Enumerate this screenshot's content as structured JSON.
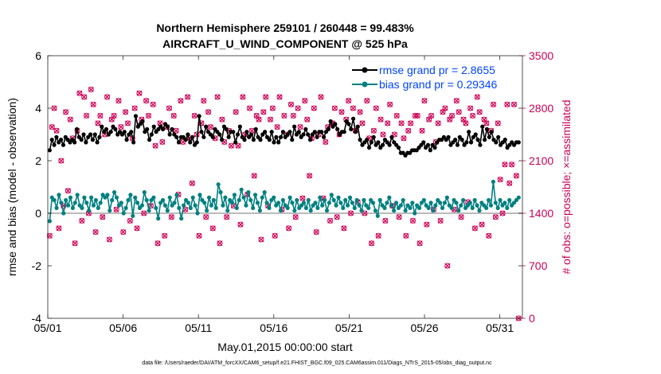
{
  "chart_data": {
    "type": "line",
    "title_line1": "Northern Hemisphere 259101 / 260448 = 99.483%",
    "title_line2": "AIRCRAFT_U_WIND_COMPONENT @ 525 hPa",
    "xlabel": "May.01,2015 00:00:00 start",
    "ylabel_left": "rmse and bias (model - observation)",
    "ylabel_right": "# of obs: o=possible; ×=assimilated",
    "ylim_left": [
      -4,
      6
    ],
    "ylim_right": [
      0,
      3500
    ],
    "xlim": [
      0,
      31.5
    ],
    "yticks_left": [
      "-4",
      "-2",
      "0",
      "2",
      "4",
      "6"
    ],
    "yticks_right": [
      "0",
      "700",
      "1400",
      "2100",
      "2800",
      "3500"
    ],
    "xticks": [
      {
        "value": 0,
        "label": "05/01"
      },
      {
        "value": 5,
        "label": "05/06"
      },
      {
        "value": 10,
        "label": "05/11"
      },
      {
        "value": 15,
        "label": "05/16"
      },
      {
        "value": 20,
        "label": "05/21"
      },
      {
        "value": 25,
        "label": "05/26"
      },
      {
        "value": 30,
        "label": "05/31"
      }
    ],
    "legend": [
      {
        "name": "rmse grand pr = 2.8655",
        "color": "#000000"
      },
      {
        "name": "bias grand pr = 0.29346",
        "color": "#008080"
      }
    ],
    "colors": {
      "rmse": "#000000",
      "bias": "#008080",
      "obs": "#cc0055",
      "zero_line": "#bbbbbb"
    },
    "series": [
      {
        "name": "rmse",
        "values": [
          2.4,
          2.8,
          2.6,
          2.9,
          2.7,
          2.8,
          2.6,
          2.9,
          2.8,
          2.7,
          2.8,
          2.7,
          3.2,
          2.9,
          2.8,
          3.0,
          2.7,
          2.9,
          3.0,
          2.8,
          3.0,
          2.7,
          2.9,
          3.3,
          3.1,
          3.2,
          3.0,
          3.1,
          3.3,
          3.2,
          3.0,
          3.1,
          3.0,
          3.1,
          2.8,
          3.0,
          3.1,
          2.7,
          3.7,
          3.3,
          3.4,
          3.5,
          3.1,
          3.2,
          2.8,
          3.0,
          3.3,
          3.1,
          3.2,
          3.3,
          3.2,
          3.4,
          3.3,
          3.0,
          3.2,
          3.0,
          2.9,
          2.7,
          2.9,
          2.9,
          2.8,
          3.0,
          2.7,
          2.9,
          2.6,
          2.7,
          3.7,
          3.1,
          2.9,
          3.3,
          3.1,
          3.0,
          2.9,
          3.2,
          3.1,
          3.0,
          2.8,
          3.3,
          3.2,
          2.9,
          3.1,
          3.1,
          2.7,
          3.0,
          3.3,
          2.9,
          2.8,
          3.1,
          2.9,
          3.0,
          2.8,
          3.2,
          2.9,
          2.8,
          3.0,
          3.1,
          2.9,
          2.8,
          3.1,
          2.7,
          2.9,
          2.7,
          2.9,
          3.1,
          2.9,
          3.0,
          3.1,
          2.8,
          3.3,
          3.0,
          3.1,
          2.9,
          3.0,
          3.2,
          3.0,
          2.8,
          3.0,
          3.1,
          2.9,
          3.1,
          3.1,
          2.9,
          3.1,
          3.2,
          3.5,
          3.3,
          3.4,
          3.2,
          3.0,
          3.1,
          3.1,
          3.5,
          3.4,
          3.2,
          3.6,
          3.1,
          3.3,
          2.8,
          2.6,
          2.7,
          2.8,
          2.5,
          2.7,
          2.9,
          2.6,
          2.7,
          2.5,
          2.6,
          2.8,
          2.7,
          2.6,
          2.9,
          2.7,
          2.6,
          2.5,
          2.3,
          2.3,
          2.2,
          2.3,
          2.3,
          2.4,
          2.4,
          2.4,
          2.5,
          2.6,
          2.7,
          2.5,
          2.6,
          2.4,
          2.6,
          2.5,
          2.7,
          2.8,
          2.8,
          2.9,
          2.8,
          2.9,
          2.6,
          2.7,
          2.8,
          2.6,
          2.9,
          2.8,
          2.6,
          2.7,
          3.1,
          2.7,
          2.9,
          3.0,
          2.8,
          2.6,
          3.3,
          2.8,
          3.2,
          2.9,
          3.1,
          2.8,
          2.7,
          2.9,
          2.6,
          2.7,
          2.8,
          2.5,
          2.6,
          2.7,
          2.6,
          2.7,
          2.7
        ]
      },
      {
        "name": "bias",
        "values": [
          -0.3,
          0.6,
          0.5,
          0.2,
          0.7,
          0.4,
          0.0,
          0.5,
          0.3,
          0.6,
          0.2,
          0.4,
          0.7,
          0.3,
          0.2,
          0.6,
          0.4,
          0.1,
          0.6,
          0.3,
          0.5,
          0.2,
          0.4,
          0.7,
          0.6,
          0.7,
          0.1,
          0.5,
          0.8,
          0.6,
          0.3,
          0.4,
          0.0,
          0.2,
          0.5,
          0.7,
          -0.1,
          0.6,
          0.4,
          0.2,
          0.3,
          0.8,
          0.5,
          0.1,
          0.5,
          0.6,
          0.2,
          -0.2,
          0.4,
          0.5,
          0.3,
          0.1,
          0.6,
          0.3,
          0.4,
          0.7,
          0.2,
          -0.2,
          0.3,
          0.5,
          0.4,
          0.2,
          0.6,
          0.3,
          0.0,
          0.7,
          0.5,
          0.4,
          0.1,
          0.6,
          0.3,
          0.5,
          0.2,
          1.1,
          0.8,
          0.3,
          0.6,
          0.1,
          0.5,
          0.4,
          0.7,
          0.2,
          0.5,
          0.9,
          0.6,
          0.3,
          0.8,
          0.5,
          0.2,
          0.7,
          0.4,
          0.1,
          0.6,
          0.8,
          0.4,
          0.2,
          0.5,
          0.6,
          0.3,
          0.4,
          0.1,
          0.5,
          0.3,
          0.2,
          0.6,
          0.4,
          0.1,
          0.5,
          0.2,
          0.3,
          0.4,
          0.2,
          0.5,
          0.1,
          0.3,
          0.4,
          0.2,
          0.6,
          0.3,
          0.5,
          0.1,
          0.4,
          0.7,
          0.5,
          0.3,
          0.6,
          0.4,
          0.2,
          0.5,
          0.3,
          0.6,
          0.4,
          0.2,
          0.5,
          0.3,
          0.1,
          0.5,
          0.3,
          0.2,
          0.5,
          0.4,
          0.1,
          -0.1,
          0.5,
          0.3,
          0.2,
          0.4,
          0.6,
          0.3,
          0.1,
          0.4,
          0.2,
          0.3,
          0.5,
          0.1,
          0.3,
          0.2,
          0.4,
          0.0,
          0.3,
          0.2,
          0.4,
          0.5,
          0.3,
          0.2,
          0.4,
          0.1,
          0.3,
          0.5,
          0.4,
          0.2,
          0.4,
          0.6,
          0.3,
          0.2,
          0.5,
          0.4,
          0.1,
          0.3,
          0.5,
          0.2,
          0.3,
          0.4,
          0.2,
          0.5,
          0.3,
          0.1,
          0.4,
          0.3,
          0.2,
          0.5,
          0.3,
          1.2,
          0.4,
          0.2,
          0.5,
          0.3,
          0.4,
          0.2,
          0.5,
          0.3,
          0.4,
          0.5,
          0.6
        ]
      }
    ],
    "obs_counts": {
      "values": [
        1100,
        2550,
        2800,
        2500,
        1200,
        2100,
        1500,
        2750,
        1700,
        2650,
        2400,
        1000,
        2500,
        3000,
        1300,
        2950,
        2700,
        1400,
        3050,
        2850,
        1150,
        2600,
        2700,
        1350,
        2450,
        2950,
        1050,
        2650,
        2700,
        1450,
        2900,
        2550,
        1150,
        2750,
        2600,
        1300,
        2400,
        2800,
        1200,
        3000,
        2650,
        1400,
        2900,
        2700,
        1500,
        2850,
        2300,
        1000,
        2600,
        2350,
        1100,
        2550,
        2800,
        1350,
        2700,
        2500,
        1650,
        2900,
        2350,
        1450,
        2950,
        2400,
        1800,
        2700,
        2450,
        1100,
        2600,
        2900,
        1350,
        2750,
        2550,
        1200,
        2400,
        2950,
        1000,
        2650,
        2350,
        1350,
        2500,
        2300,
        1500,
        2750,
        2300,
        1250,
        2950,
        2450,
        1650,
        2800,
        2500,
        1900,
        2700,
        2650,
        1050,
        2750,
        2950,
        1500,
        2650,
        2800,
        1100,
        2550,
        2950,
        1450,
        2700,
        2450,
        1200,
        2850,
        2700,
        1350,
        2800,
        2550,
        1600,
        2900,
        2650,
        1900,
        2400,
        2800,
        1150,
        2450,
        2950,
        1600,
        2350,
        2550,
        1300,
        2600,
        2800,
        1350,
        2450,
        2750,
        1200,
        2650,
        2900,
        1400,
        2800,
        2500,
        1550,
        2750,
        2600,
        1400,
        2900,
        2400,
        1000,
        2500,
        2800,
        1100,
        2650,
        2450,
        1300,
        2600,
        2850,
        1500,
        2450,
        2700,
        1350,
        2600,
        2400,
        1100,
        2500,
        2600,
        1300,
        2700,
        2700,
        1000,
        2500,
        2900,
        1250,
        2650,
        2700,
        1450,
        2350,
        2600,
        1300,
        2750,
        2800,
        700,
        2650,
        2700,
        1450,
        2900,
        2750,
        1350,
        2650,
        2600,
        1550,
        2800,
        2700,
        1200,
        2950,
        2750,
        1250,
        2650,
        2600,
        1100,
        2500,
        2850,
        1350,
        2600,
        1850,
        1400,
        2050,
        2850,
        1800,
        2050,
        2850,
        1900,
        0
      ],
      "note": "o=possible; ×=assimilated"
    },
    "zero_line_value": 0
  },
  "footnote": "data file: /Users/raeder/DAI/ATM_forcXX/CAM6_setup/f.e21.FHIST_BGC.f09_025.CAM6assim.011/Diags_NTrS_2015-05/obs_diag_output.nc"
}
